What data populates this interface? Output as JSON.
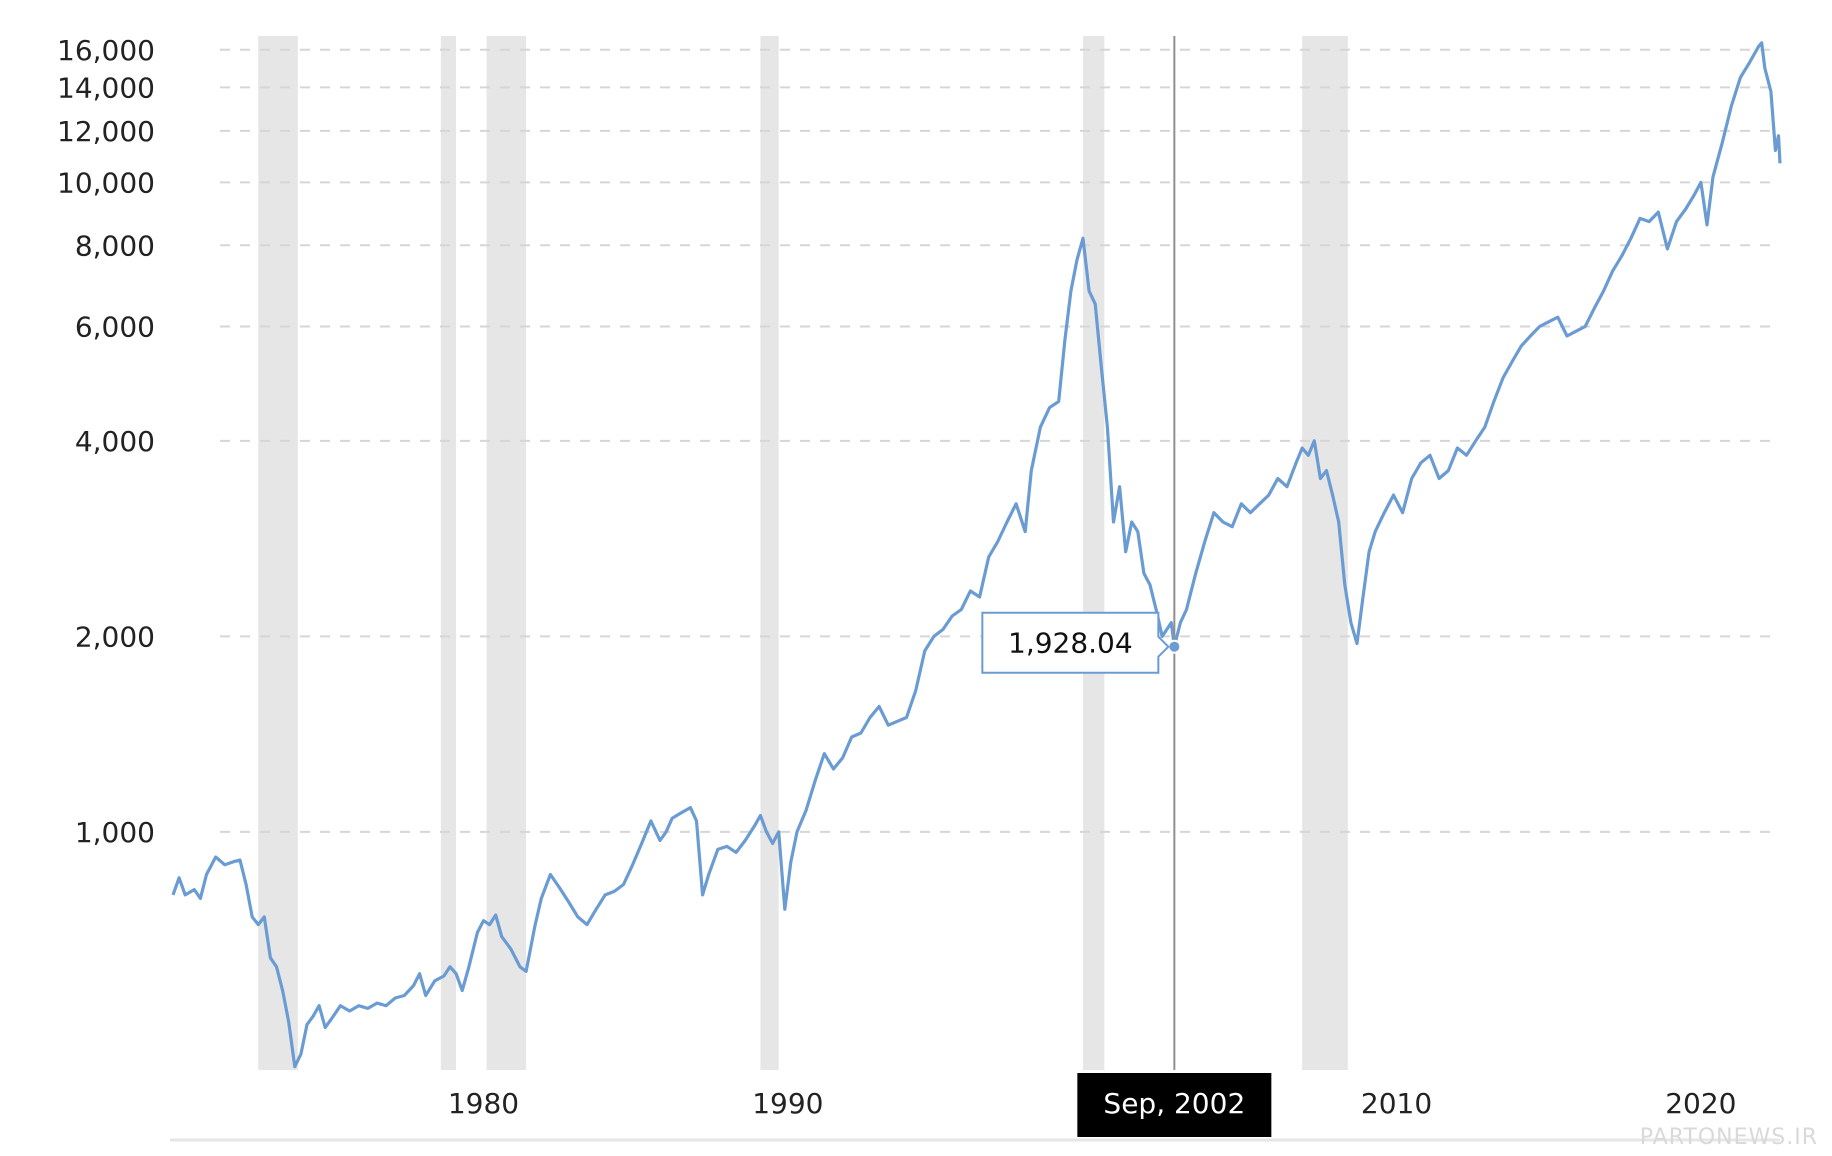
{
  "chart_data": {
    "type": "line",
    "y_scale": "log",
    "grid": "horizontal dashed",
    "y_ticks": [
      1000,
      2000,
      4000,
      6000,
      8000,
      10000,
      12000,
      14000,
      16000
    ],
    "y_tick_labels": [
      "1,000",
      "2,000",
      "4,000",
      "6,000",
      "8,000",
      "10,000",
      "12,000",
      "14,000",
      "16,000"
    ],
    "x_ticks": [
      1980,
      1990,
      2010,
      2020
    ],
    "x_tick_labels": [
      "1980",
      "1990",
      "2010",
      "2020"
    ],
    "xlim": [
      1969.7,
      2022.6
    ],
    "ylim": [
      430,
      16800
    ],
    "recession_bands": [
      [
        1972.6,
        1973.9
      ],
      [
        1978.6,
        1979.1
      ],
      [
        1980.1,
        1981.4
      ],
      [
        1989.1,
        1989.7
      ],
      [
        1999.7,
        2000.4
      ],
      [
        2006.9,
        2008.4
      ]
    ],
    "series": [
      {
        "color": "#6a9bd3",
        "points": [
          [
            1969.8,
            800
          ],
          [
            1970.0,
            850
          ],
          [
            1970.2,
            800
          ],
          [
            1970.5,
            815
          ],
          [
            1970.7,
            790
          ],
          [
            1970.9,
            860
          ],
          [
            1971.2,
            915
          ],
          [
            1971.5,
            890
          ],
          [
            1971.8,
            900
          ],
          [
            1972.0,
            905
          ],
          [
            1972.2,
            830
          ],
          [
            1972.4,
            740
          ],
          [
            1972.6,
            720
          ],
          [
            1972.8,
            740
          ],
          [
            1973.0,
            640
          ],
          [
            1973.2,
            620
          ],
          [
            1973.4,
            570
          ],
          [
            1973.6,
            510
          ],
          [
            1973.8,
            435
          ],
          [
            1974.0,
            455
          ],
          [
            1974.2,
            505
          ],
          [
            1974.4,
            520
          ],
          [
            1974.6,
            540
          ],
          [
            1974.8,
            500
          ],
          [
            1975.0,
            515
          ],
          [
            1975.3,
            540
          ],
          [
            1975.6,
            530
          ],
          [
            1975.9,
            540
          ],
          [
            1976.2,
            535
          ],
          [
            1976.5,
            545
          ],
          [
            1976.8,
            540
          ],
          [
            1977.1,
            555
          ],
          [
            1977.4,
            560
          ],
          [
            1977.7,
            580
          ],
          [
            1977.9,
            605
          ],
          [
            1978.1,
            560
          ],
          [
            1978.4,
            590
          ],
          [
            1978.7,
            600
          ],
          [
            1978.9,
            620
          ],
          [
            1979.1,
            605
          ],
          [
            1979.3,
            570
          ],
          [
            1979.5,
            615
          ],
          [
            1979.8,
            700
          ],
          [
            1980.0,
            730
          ],
          [
            1980.2,
            720
          ],
          [
            1980.4,
            745
          ],
          [
            1980.6,
            690
          ],
          [
            1980.9,
            660
          ],
          [
            1981.2,
            620
          ],
          [
            1981.4,
            610
          ],
          [
            1981.7,
            720
          ],
          [
            1981.9,
            790
          ],
          [
            1982.2,
            860
          ],
          [
            1982.5,
            820
          ],
          [
            1982.8,
            780
          ],
          [
            1983.1,
            740
          ],
          [
            1983.4,
            720
          ],
          [
            1983.7,
            760
          ],
          [
            1984.0,
            800
          ],
          [
            1984.3,
            810
          ],
          [
            1984.6,
            830
          ],
          [
            1984.9,
            890
          ],
          [
            1985.2,
            960
          ],
          [
            1985.5,
            1040
          ],
          [
            1985.8,
            970
          ],
          [
            1986.0,
            1000
          ],
          [
            1986.2,
            1050
          ],
          [
            1986.5,
            1070
          ],
          [
            1986.8,
            1090
          ],
          [
            1987.0,
            1040
          ],
          [
            1987.2,
            800
          ],
          [
            1987.4,
            860
          ],
          [
            1987.7,
            940
          ],
          [
            1988.0,
            950
          ],
          [
            1988.3,
            930
          ],
          [
            1988.6,
            970
          ],
          [
            1988.9,
            1020
          ],
          [
            1989.1,
            1060
          ],
          [
            1989.3,
            1000
          ],
          [
            1989.5,
            960
          ],
          [
            1989.7,
            1000
          ],
          [
            1989.9,
            760
          ],
          [
            1990.1,
            900
          ],
          [
            1990.3,
            1000
          ],
          [
            1990.6,
            1080
          ],
          [
            1990.9,
            1200
          ],
          [
            1991.2,
            1320
          ],
          [
            1991.5,
            1250
          ],
          [
            1991.8,
            1300
          ],
          [
            1992.1,
            1400
          ],
          [
            1992.4,
            1420
          ],
          [
            1992.7,
            1500
          ],
          [
            1993.0,
            1560
          ],
          [
            1993.3,
            1460
          ],
          [
            1993.6,
            1480
          ],
          [
            1993.9,
            1500
          ],
          [
            1994.2,
            1650
          ],
          [
            1994.5,
            1900
          ],
          [
            1994.8,
            2000
          ],
          [
            1995.1,
            2050
          ],
          [
            1995.4,
            2150
          ],
          [
            1995.7,
            2200
          ],
          [
            1996.0,
            2350
          ],
          [
            1996.3,
            2300
          ],
          [
            1996.6,
            2650
          ],
          [
            1996.9,
            2800
          ],
          [
            1997.2,
            3000
          ],
          [
            1997.5,
            3200
          ],
          [
            1997.8,
            2900
          ],
          [
            1998.0,
            3600
          ],
          [
            1998.3,
            4200
          ],
          [
            1998.6,
            4500
          ],
          [
            1998.9,
            4600
          ],
          [
            1999.1,
            5700
          ],
          [
            1999.3,
            6800
          ],
          [
            1999.5,
            7600
          ],
          [
            1999.7,
            8200
          ],
          [
            1999.9,
            6800
          ],
          [
            2000.1,
            6500
          ],
          [
            2000.3,
            5200
          ],
          [
            2000.5,
            4200
          ],
          [
            2000.7,
            3000
          ],
          [
            2000.9,
            3400
          ],
          [
            2001.1,
            2700
          ],
          [
            2001.3,
            3000
          ],
          [
            2001.5,
            2900
          ],
          [
            2001.7,
            2500
          ],
          [
            2001.9,
            2400
          ],
          [
            2002.1,
            2200
          ],
          [
            2002.3,
            2000
          ],
          [
            2002.6,
            2100
          ],
          [
            2002.7,
            1928
          ],
          [
            2002.9,
            2100
          ],
          [
            2003.1,
            2200
          ],
          [
            2003.4,
            2500
          ],
          [
            2003.7,
            2800
          ],
          [
            2004.0,
            3100
          ],
          [
            2004.3,
            3000
          ],
          [
            2004.6,
            2950
          ],
          [
            2004.9,
            3200
          ],
          [
            2005.2,
            3100
          ],
          [
            2005.5,
            3200
          ],
          [
            2005.8,
            3300
          ],
          [
            2006.1,
            3500
          ],
          [
            2006.4,
            3400
          ],
          [
            2006.7,
            3700
          ],
          [
            2006.9,
            3900
          ],
          [
            2007.1,
            3800
          ],
          [
            2007.3,
            4000
          ],
          [
            2007.5,
            3500
          ],
          [
            2007.7,
            3600
          ],
          [
            2007.9,
            3300
          ],
          [
            2008.1,
            3000
          ],
          [
            2008.3,
            2400
          ],
          [
            2008.5,
            2100
          ],
          [
            2008.7,
            1950
          ],
          [
            2008.9,
            2300
          ],
          [
            2009.1,
            2700
          ],
          [
            2009.3,
            2900
          ],
          [
            2009.6,
            3100
          ],
          [
            2009.9,
            3300
          ],
          [
            2010.2,
            3100
          ],
          [
            2010.5,
            3500
          ],
          [
            2010.8,
            3700
          ],
          [
            2011.1,
            3800
          ],
          [
            2011.4,
            3500
          ],
          [
            2011.7,
            3600
          ],
          [
            2012.0,
            3900
          ],
          [
            2012.3,
            3800
          ],
          [
            2012.6,
            4000
          ],
          [
            2012.9,
            4200
          ],
          [
            2013.2,
            4600
          ],
          [
            2013.5,
            5000
          ],
          [
            2013.8,
            5300
          ],
          [
            2014.1,
            5600
          ],
          [
            2014.4,
            5800
          ],
          [
            2014.7,
            6000
          ],
          [
            2015.0,
            6100
          ],
          [
            2015.3,
            6200
          ],
          [
            2015.6,
            5800
          ],
          [
            2015.9,
            5900
          ],
          [
            2016.2,
            6000
          ],
          [
            2016.5,
            6400
          ],
          [
            2016.8,
            6800
          ],
          [
            2017.1,
            7300
          ],
          [
            2017.4,
            7700
          ],
          [
            2017.7,
            8200
          ],
          [
            2018.0,
            8800
          ],
          [
            2018.3,
            8700
          ],
          [
            2018.6,
            9000
          ],
          [
            2018.9,
            7900
          ],
          [
            2019.2,
            8700
          ],
          [
            2019.5,
            9100
          ],
          [
            2019.8,
            9600
          ],
          [
            2020.0,
            10000
          ],
          [
            2020.2,
            8600
          ],
          [
            2020.4,
            10200
          ],
          [
            2020.7,
            11500
          ],
          [
            2021.0,
            13100
          ],
          [
            2021.3,
            14500
          ],
          [
            2021.6,
            15300
          ],
          [
            2021.9,
            16200
          ],
          [
            2022.0,
            16400
          ],
          [
            2022.1,
            15000
          ],
          [
            2022.3,
            13800
          ],
          [
            2022.45,
            11200
          ],
          [
            2022.55,
            11800
          ],
          [
            2022.6,
            10700
          ]
        ]
      }
    ],
    "highlight": {
      "x": 2002.7,
      "y": 1928.04,
      "value_label": "1,928.04",
      "date_label": "Sep, 2002"
    }
  },
  "watermark": "PARTONEWS.IR"
}
